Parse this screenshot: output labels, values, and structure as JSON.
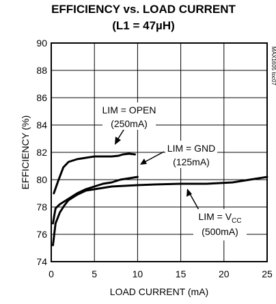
{
  "chart_data": {
    "type": "line",
    "title": "EFFICIENCY vs. LOAD CURRENT",
    "subtitle": "(L1 = 47µH)",
    "xlabel": "LOAD CURRENT (mA)",
    "ylabel": "EFFICIENCY (%)",
    "xlim": [
      0,
      25
    ],
    "ylim": [
      74,
      90
    ],
    "xticks": [
      0,
      5,
      10,
      15,
      20,
      25
    ],
    "yticks": [
      74,
      76,
      78,
      80,
      82,
      84,
      86,
      88,
      90
    ],
    "grid": true,
    "side_code": "MAX1605 toc07",
    "series": [
      {
        "name": "LIM = OPEN (250mA)",
        "x": [
          0.3,
          0.8,
          1.4,
          2.0,
          3.0,
          4.0,
          5.0,
          6.0,
          7.0,
          7.8,
          8.3,
          9.0,
          9.7
        ],
        "y": [
          79.0,
          79.9,
          80.9,
          81.3,
          81.5,
          81.6,
          81.7,
          81.7,
          81.7,
          81.75,
          81.85,
          81.9,
          81.85
        ]
      },
      {
        "name": "LIM = GND (125mA)",
        "x": [
          0.2,
          0.5,
          1.0,
          1.5,
          2.0,
          3.0,
          4.0,
          5.0,
          6.0,
          7.0,
          8.0,
          9.0,
          10.0
        ],
        "y": [
          76.8,
          77.9,
          78.2,
          78.4,
          78.6,
          79.0,
          79.3,
          79.5,
          79.7,
          79.8,
          80.0,
          80.1,
          80.2
        ]
      },
      {
        "name": "LIM = VCC (500mA)",
        "x": [
          0.2,
          0.5,
          1.0,
          1.5,
          2.0,
          3.0,
          4.0,
          5.0,
          7.0,
          10.0,
          12.0,
          15.0,
          18.0,
          19.5,
          21.0,
          22.5,
          25.0
        ],
        "y": [
          75.2,
          76.8,
          77.6,
          78.1,
          78.5,
          78.9,
          79.2,
          79.3,
          79.5,
          79.6,
          79.65,
          79.7,
          79.7,
          79.75,
          79.8,
          79.95,
          80.2
        ]
      }
    ],
    "annotations": [
      {
        "line1": "LIM = OPEN",
        "line2": "(250mA)"
      },
      {
        "line1": "LIM = GND",
        "line2": "(125mA)"
      },
      {
        "line1_main": "LIM = V",
        "line1_sub": "CC",
        "line2": "(500mA)"
      }
    ]
  }
}
